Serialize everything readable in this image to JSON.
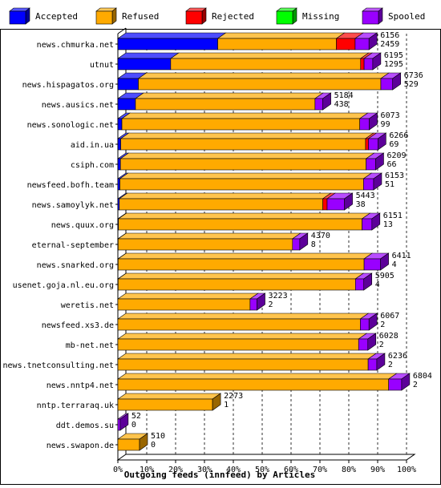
{
  "chart_data": {
    "type": "bar",
    "orientation": "horizontal",
    "stacked": true,
    "three_d": true,
    "xlabel": "Outgoing feeds (innfeed) by Articles",
    "ylabel": "",
    "xlim": [
      0,
      100
    ],
    "x_ticks": [
      "0%",
      "10%",
      "20%",
      "30%",
      "40%",
      "50%",
      "60%",
      "70%",
      "80%",
      "90%",
      "100%"
    ],
    "grid": "vertical dashed",
    "legend_position": "top",
    "legend": [
      {
        "name": "Accepted",
        "color": "#0000ff"
      },
      {
        "name": "Refused",
        "color": "#ffaa00"
      },
      {
        "name": "Rejected",
        "color": "#ff0000"
      },
      {
        "name": "Missing",
        "color": "#00ff00"
      },
      {
        "name": "Spooled",
        "color": "#9900ff"
      }
    ],
    "bars": [
      {
        "label": "news.chmurka.net",
        "total": "6156",
        "accepted": "2459",
        "pct": [
          34.6,
          41.1,
          6.5,
          0,
          4.8
        ]
      },
      {
        "label": "utnut",
        "total": "6195",
        "accepted": "1295",
        "pct": [
          18.3,
          65.8,
          1.2,
          0,
          3.0
        ]
      },
      {
        "label": "news.hispagatos.org",
        "total": "6736",
        "accepted": "529",
        "pct": [
          7.1,
          84.0,
          0,
          0,
          4.1
        ]
      },
      {
        "label": "news.ausics.net",
        "total": "5184",
        "accepted": "438",
        "pct": [
          6.1,
          62.2,
          0,
          0,
          2.7
        ]
      },
      {
        "label": "news.sonologic.net",
        "total": "6073",
        "accepted": "99",
        "pct": [
          1.4,
          82.4,
          0,
          0,
          3.3
        ]
      },
      {
        "label": "aid.in.ua",
        "total": "6266",
        "accepted": "69",
        "pct": [
          1.0,
          84.8,
          1.0,
          0,
          3.3
        ]
      },
      {
        "label": "csiph.com",
        "total": "6209",
        "accepted": "66",
        "pct": [
          0.9,
          85.1,
          0,
          0,
          3.3
        ]
      },
      {
        "label": "newsfeed.bofh.team",
        "total": "6153",
        "accepted": "51",
        "pct": [
          0.7,
          84.4,
          0,
          0,
          3.5
        ]
      },
      {
        "label": "news.samoylyk.net",
        "total": "5443",
        "accepted": "38",
        "pct": [
          0.5,
          70.5,
          1.5,
          0,
          6.0
        ]
      },
      {
        "label": "news.quux.org",
        "total": "6151",
        "accepted": "13",
        "pct": [
          0.2,
          84.4,
          0,
          0,
          3.4
        ]
      },
      {
        "label": "eternal-september",
        "total": "4370",
        "accepted": "8",
        "pct": [
          0.1,
          60.4,
          0,
          0,
          2.5
        ]
      },
      {
        "label": "news.snarked.org",
        "total": "6411",
        "accepted": "4",
        "pct": [
          0.1,
          85.2,
          0,
          0,
          5.7
        ]
      },
      {
        "label": "usenet.goja.nl.eu.org",
        "total": "5905",
        "accepted": "4",
        "pct": [
          0.1,
          82.2,
          0,
          0,
          2.9
        ]
      },
      {
        "label": "weretis.net",
        "total": "3223",
        "accepted": "2",
        "pct": [
          0,
          45.8,
          0,
          0,
          2.4
        ]
      },
      {
        "label": "newsfeed.xs3.de",
        "total": "6067",
        "accepted": "2",
        "pct": [
          0,
          84.0,
          0,
          0,
          3.0
        ]
      },
      {
        "label": "mb-net.net",
        "total": "6028",
        "accepted": "2",
        "pct": [
          0,
          83.4,
          0,
          0,
          3.2
        ]
      },
      {
        "label": "news.tnetconsulting.net",
        "total": "6236",
        "accepted": "2",
        "pct": [
          0,
          86.7,
          0,
          0,
          3.0
        ]
      },
      {
        "label": "news.nntp4.net",
        "total": "6804",
        "accepted": "2",
        "pct": [
          0,
          93.8,
          0,
          0,
          4.5
        ]
      },
      {
        "label": "nntp.terraraq.uk",
        "total": "2273",
        "accepted": "1",
        "pct": [
          0,
          32.8,
          0,
          0,
          0
        ]
      },
      {
        "label": "ddt.demos.su",
        "total": "52",
        "accepted": "0",
        "pct": [
          0,
          0,
          0,
          0,
          0.8
        ]
      },
      {
        "label": "news.swapon.de",
        "total": "510",
        "accepted": "0",
        "pct": [
          0,
          7.5,
          0,
          0,
          0
        ]
      }
    ]
  }
}
